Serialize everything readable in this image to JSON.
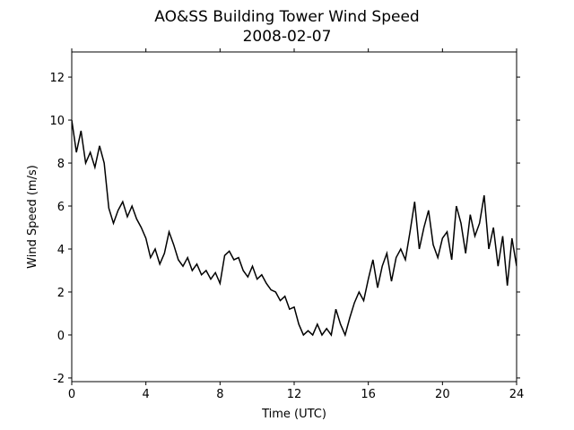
{
  "chart_data": {
    "type": "line",
    "title": "AO&SS Building Tower Wind Speed",
    "subtitle": "2008-02-07",
    "x_label": "Time (UTC)",
    "y_label": "Wind Speed (m/s)",
    "x": [
      0,
      0.25,
      0.5,
      0.75,
      1,
      1.25,
      1.5,
      1.75,
      2,
      2.25,
      2.5,
      2.75,
      3,
      3.25,
      3.5,
      3.75,
      4,
      4.25,
      4.5,
      4.75,
      5,
      5.25,
      5.5,
      5.75,
      6,
      6.25,
      6.5,
      6.75,
      7,
      7.25,
      7.5,
      7.75,
      8,
      8.25,
      8.5,
      8.75,
      9,
      9.25,
      9.5,
      9.75,
      10,
      10.25,
      10.5,
      10.75,
      11,
      11.25,
      11.5,
      11.75,
      12,
      12.25,
      12.5,
      12.75,
      13,
      13.25,
      13.5,
      13.75,
      14,
      14.25,
      14.5,
      14.75,
      15,
      15.25,
      15.5,
      15.75,
      16,
      16.25,
      16.5,
      16.75,
      17,
      17.25,
      17.5,
      17.75,
      18,
      18.25,
      18.5,
      18.75,
      19,
      19.25,
      19.5,
      19.75,
      20,
      20.25,
      20.5,
      20.75,
      21,
      21.25,
      21.5,
      21.75,
      22,
      22.25,
      22.5,
      22.75,
      23,
      23.25,
      23.5,
      23.75,
      24
    ],
    "series": [
      {
        "name": "Wind Speed",
        "color": "#000000",
        "values": [
          10.0,
          8.5,
          9.5,
          8.0,
          8.5,
          7.8,
          8.8,
          8.0,
          5.9,
          5.2,
          5.8,
          6.2,
          5.5,
          6.0,
          5.4,
          5.0,
          4.5,
          3.6,
          4.0,
          3.3,
          3.8,
          4.8,
          4.2,
          3.5,
          3.2,
          3.6,
          3.0,
          3.3,
          2.8,
          3.0,
          2.6,
          2.9,
          2.4,
          3.7,
          3.9,
          3.5,
          3.6,
          3.0,
          2.7,
          3.2,
          2.6,
          2.8,
          2.4,
          2.1,
          2.0,
          1.6,
          1.8,
          1.2,
          1.3,
          0.5,
          0.0,
          0.2,
          0.0,
          0.5,
          0.0,
          0.3,
          0.0,
          1.2,
          0.5,
          0.0,
          0.8,
          1.5,
          2.0,
          1.6,
          2.6,
          3.5,
          2.2,
          3.2,
          3.8,
          2.5,
          3.6,
          4.0,
          3.5,
          4.8,
          6.2,
          4.0,
          5.0,
          5.8,
          4.2,
          3.6,
          4.5,
          4.8,
          3.5,
          6.0,
          5.2,
          3.8,
          5.6,
          4.6,
          5.2,
          6.5,
          4.0,
          5.0,
          3.2,
          4.6,
          2.3,
          4.5,
          3.2
        ]
      }
    ],
    "xlim": [
      0,
      24
    ],
    "xticks": [
      0,
      4,
      8,
      12,
      16,
      20,
      24
    ],
    "ylim": [
      -2.17,
      13.17
    ],
    "yticks": [
      -2,
      0,
      2,
      4,
      6,
      8,
      10,
      12
    ]
  }
}
